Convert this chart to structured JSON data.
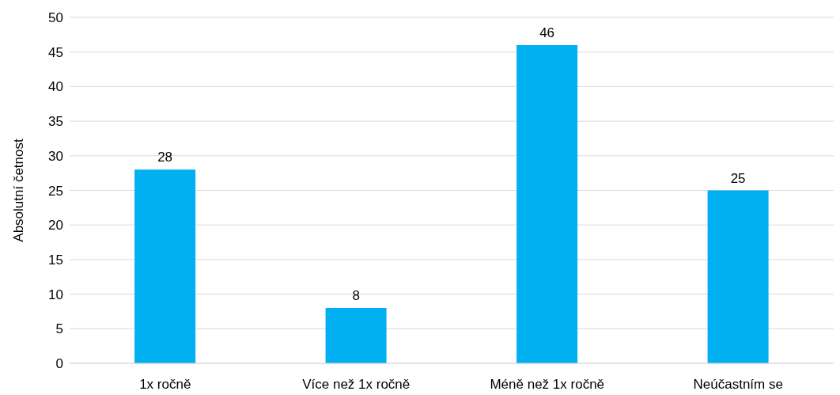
{
  "chart_data": {
    "type": "bar",
    "ylabel": "Absolutní četnost",
    "categories": [
      "1x ročně",
      "Více než 1x ročně",
      "Méně než 1x ročně",
      "Neúčastním se"
    ],
    "values": [
      28,
      8,
      46,
      25
    ],
    "color": "#00b0f0",
    "ylim": [
      0,
      50
    ],
    "yticks": [
      0,
      5,
      10,
      15,
      20,
      25,
      30,
      35,
      40,
      45,
      50
    ],
    "grid": "y",
    "data_labels": true
  }
}
